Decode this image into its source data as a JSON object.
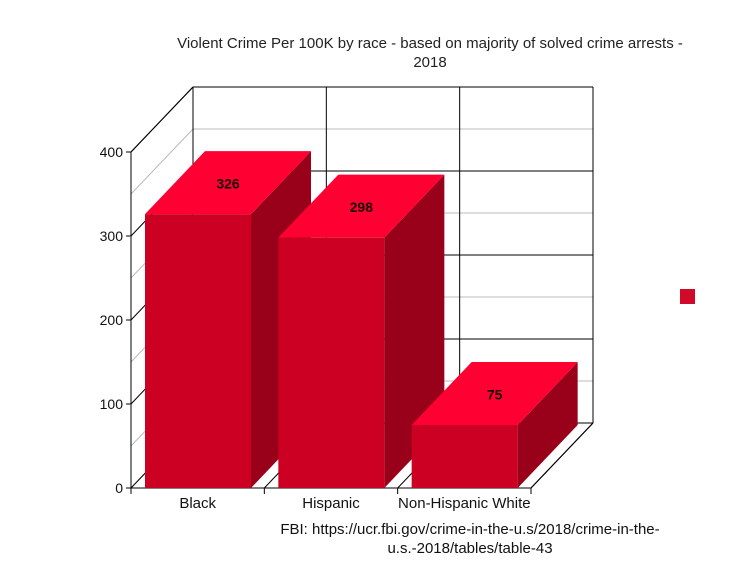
{
  "chart_data": {
    "type": "bar",
    "title": "Violent Crime Per 100K by race - based on majority of solved crime arrests - 2018",
    "categories": [
      "Black",
      "Hispanic",
      "Non-Hispanic White"
    ],
    "values": [
      326,
      298,
      75
    ],
    "data_labels": [
      "326",
      "298",
      "75"
    ],
    "ylim": [
      0,
      400
    ],
    "yticks": [
      "0",
      "100",
      "200",
      "300",
      "400"
    ],
    "xlabel": "",
    "ylabel": "",
    "grid": true,
    "style": "3d",
    "legend": {
      "placement": "right",
      "entries": [
        ""
      ]
    },
    "colors": {
      "front": "#cc0022",
      "top": "#ff0033",
      "side": "#99001a",
      "legend": "#d10a2a"
    },
    "source": "FBI: https://ucr.fbi.gov/crime-in-the-u.s/2018/crime-in-the-u.s.-2018/tables/table-43"
  }
}
